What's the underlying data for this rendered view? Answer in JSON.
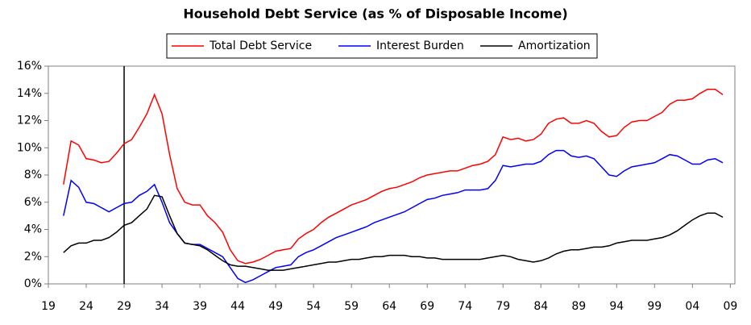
{
  "chart_data": {
    "type": "line",
    "title": "Household Debt Service (as % of Disposable Income)",
    "x": [
      1921,
      1922,
      1923,
      1924,
      1925,
      1926,
      1927,
      1928,
      1929,
      1930,
      1931,
      1932,
      1933,
      1934,
      1935,
      1936,
      1937,
      1938,
      1939,
      1940,
      1941,
      1942,
      1943,
      1944,
      1945,
      1946,
      1947,
      1948,
      1949,
      1950,
      1951,
      1952,
      1953,
      1954,
      1955,
      1956,
      1957,
      1958,
      1959,
      1960,
      1961,
      1962,
      1963,
      1964,
      1965,
      1966,
      1967,
      1968,
      1969,
      1970,
      1971,
      1972,
      1973,
      1974,
      1975,
      1976,
      1977,
      1978,
      1979,
      1980,
      1981,
      1982,
      1983,
      1984,
      1985,
      1986,
      1987,
      1988,
      1989,
      1990,
      1991,
      1992,
      1993,
      1994,
      1995,
      1996,
      1997,
      1998,
      1999,
      2000,
      2001,
      2002,
      2003,
      2004,
      2005,
      2006,
      2007,
      2008
    ],
    "series": [
      {
        "name": "Total Debt Service",
        "color": "#ff0000",
        "values": [
          7.3,
          10.5,
          10.2,
          9.2,
          9.1,
          8.9,
          9.0,
          9.6,
          10.3,
          10.6,
          11.5,
          12.5,
          13.9,
          12.5,
          9.5,
          7.0,
          6.0,
          5.8,
          5.8,
          5.0,
          4.5,
          3.8,
          2.5,
          1.7,
          1.5,
          1.6,
          1.8,
          2.1,
          2.4,
          2.5,
          2.6,
          3.3,
          3.7,
          4.0,
          4.5,
          4.9,
          5.2,
          5.5,
          5.8,
          6.0,
          6.2,
          6.5,
          6.8,
          7.0,
          7.1,
          7.3,
          7.5,
          7.8,
          8.0,
          8.1,
          8.2,
          8.3,
          8.3,
          8.5,
          8.7,
          8.8,
          9.0,
          9.5,
          10.8,
          10.6,
          10.7,
          10.5,
          10.6,
          11.0,
          11.8,
          12.1,
          12.2,
          11.8,
          11.8,
          12.0,
          11.8,
          11.2,
          10.8,
          10.9,
          11.5,
          11.9,
          12.0,
          12.0,
          12.3,
          12.6,
          13.2,
          13.5,
          13.5,
          13.6,
          14.0,
          14.3,
          14.3,
          13.9
        ]
      },
      {
        "name": "Interest Burden",
        "color": "#0000ff",
        "values": [
          5.0,
          7.6,
          7.1,
          6.0,
          5.9,
          5.6,
          5.3,
          5.6,
          5.9,
          6.0,
          6.5,
          6.8,
          7.3,
          6.0,
          4.5,
          3.7,
          3.0,
          2.9,
          2.9,
          2.6,
          2.3,
          2.0,
          1.2,
          0.4,
          0.1,
          0.3,
          0.6,
          0.9,
          1.2,
          1.3,
          1.4,
          2.0,
          2.3,
          2.5,
          2.8,
          3.1,
          3.4,
          3.6,
          3.8,
          4.0,
          4.2,
          4.5,
          4.7,
          4.9,
          5.1,
          5.3,
          5.6,
          5.9,
          6.2,
          6.3,
          6.5,
          6.6,
          6.7,
          6.9,
          6.9,
          6.9,
          7.0,
          7.6,
          8.7,
          8.6,
          8.7,
          8.8,
          8.8,
          9.0,
          9.5,
          9.8,
          9.8,
          9.4,
          9.3,
          9.4,
          9.2,
          8.6,
          8.0,
          7.9,
          8.3,
          8.6,
          8.7,
          8.8,
          8.9,
          9.2,
          9.5,
          9.4,
          9.1,
          8.8,
          8.8,
          9.1,
          9.2,
          8.9
        ]
      },
      {
        "name": "Amortization",
        "color": "#000000",
        "values": [
          2.3,
          2.8,
          3.0,
          3.0,
          3.2,
          3.2,
          3.4,
          3.8,
          4.3,
          4.5,
          5.0,
          5.5,
          6.5,
          6.4,
          5.0,
          3.7,
          3.0,
          2.9,
          2.8,
          2.5,
          2.1,
          1.7,
          1.4,
          1.3,
          1.3,
          1.2,
          1.1,
          1.0,
          1.0,
          1.0,
          1.1,
          1.2,
          1.3,
          1.4,
          1.5,
          1.6,
          1.6,
          1.7,
          1.8,
          1.8,
          1.9,
          2.0,
          2.0,
          2.1,
          2.1,
          2.1,
          2.0,
          2.0,
          1.9,
          1.9,
          1.8,
          1.8,
          1.8,
          1.8,
          1.8,
          1.8,
          1.9,
          2.0,
          2.1,
          2.0,
          1.8,
          1.7,
          1.6,
          1.7,
          1.9,
          2.2,
          2.4,
          2.5,
          2.5,
          2.6,
          2.7,
          2.7,
          2.8,
          3.0,
          3.1,
          3.2,
          3.2,
          3.2,
          3.3,
          3.4,
          3.6,
          3.9,
          4.3,
          4.7,
          5.0,
          5.2,
          5.2,
          4.9
        ]
      }
    ],
    "xlim": [
      1919,
      2009.6
    ],
    "xticks": [
      {
        "value": 1919,
        "label": "19"
      },
      {
        "value": 1924,
        "label": "24"
      },
      {
        "value": 1929,
        "label": "29"
      },
      {
        "value": 1934,
        "label": "34"
      },
      {
        "value": 1939,
        "label": "39"
      },
      {
        "value": 1944,
        "label": "44"
      },
      {
        "value": 1949,
        "label": "49"
      },
      {
        "value": 1954,
        "label": "54"
      },
      {
        "value": 1959,
        "label": "59"
      },
      {
        "value": 1964,
        "label": "64"
      },
      {
        "value": 1969,
        "label": "69"
      },
      {
        "value": 1974,
        "label": "74"
      },
      {
        "value": 1979,
        "label": "79"
      },
      {
        "value": 1984,
        "label": "84"
      },
      {
        "value": 1989,
        "label": "89"
      },
      {
        "value": 1994,
        "label": "94"
      },
      {
        "value": 1999,
        "label": "99"
      },
      {
        "value": 2004,
        "label": "04"
      },
      {
        "value": 2009,
        "label": "09"
      }
    ],
    "ylim": [
      0,
      16
    ],
    "yticks": [
      {
        "value": 0,
        "label": "0%"
      },
      {
        "value": 2,
        "label": "2%"
      },
      {
        "value": 4,
        "label": "4%"
      },
      {
        "value": 6,
        "label": "6%"
      },
      {
        "value": 8,
        "label": "8%"
      },
      {
        "value": 10,
        "label": "10%"
      },
      {
        "value": 12,
        "label": "12%"
      },
      {
        "value": 14,
        "label": "14%"
      },
      {
        "value": 16,
        "label": "16%"
      }
    ],
    "vline": 1929,
    "legend": "top"
  }
}
